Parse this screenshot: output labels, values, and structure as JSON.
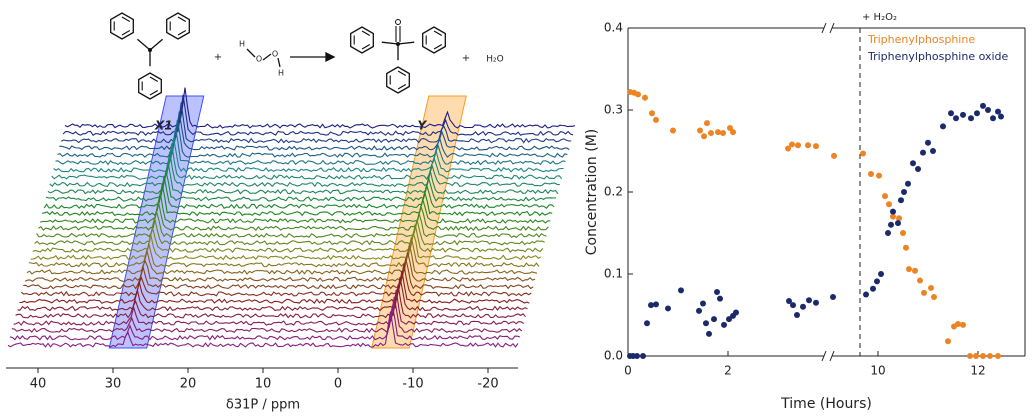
{
  "chart_data": [
    {
      "type": "waterfall",
      "xlabel": "δ31P / ppm",
      "xlim": [
        44,
        -24
      ],
      "xticks": [
        40,
        30,
        20,
        10,
        0,
        -10,
        -20
      ],
      "peaks": [
        {
          "label": "X1",
          "ppm": 28,
          "color": "#3c50ff"
        },
        {
          "label": "Y",
          "ppm": -7,
          "color": "#ff9a1e"
        }
      ]
    },
    {
      "type": "scatter",
      "xlabel": "Time (Hours)",
      "ylabel": "Concentration (M)",
      "xlim": [
        0,
        12.95
      ],
      "xbreak": [
        4,
        9
      ],
      "ylim": [
        0,
        0.4
      ],
      "xticks": [
        0,
        2,
        10,
        12
      ],
      "yticks": [
        {
          "value": 0,
          "label": "0.0"
        },
        0.1,
        0.2,
        0.3,
        0.4
      ],
      "legend": "top-right",
      "annotation": {
        "text": "+ H₂O₂",
        "x": 9.64
      },
      "series": [
        {
          "name": "Triphenylphosphine",
          "color": "#ec8424",
          "x": [
            0.04,
            0.12,
            0.2,
            0.34,
            0.48,
            0.56,
            0.9,
            1.44,
            1.52,
            1.58,
            1.66,
            1.8,
            1.9,
            2.04,
            2.1,
            3.2,
            3.28,
            3.4,
            3.6,
            3.76,
            9.12,
            9.7,
            9.86,
            10.02,
            10.14,
            10.22,
            10.3,
            10.42,
            10.5,
            10.56,
            10.62,
            10.74,
            10.84,
            10.92,
            11.06,
            11.12,
            11.4,
            11.52,
            11.6,
            11.7,
            11.84,
            11.96,
            12.1,
            12.24,
            12.4
          ],
          "values": [
            0.322,
            0.321,
            0.319,
            0.315,
            0.296,
            0.288,
            0.275,
            0.275,
            0.268,
            0.284,
            0.272,
            0.273,
            0.272,
            0.278,
            0.273,
            0.253,
            0.258,
            0.257,
            0.257,
            0.256,
            0.244,
            0.247,
            0.222,
            0.22,
            0.195,
            0.185,
            0.17,
            0.168,
            0.15,
            0.132,
            0.106,
            0.104,
            0.092,
            0.077,
            0.083,
            0.072,
            0.018,
            0.036,
            0.039,
            0.038,
            0,
            0,
            0,
            0,
            0
          ]
        },
        {
          "name": "Triphenylphosphine oxide",
          "color": "#1b2a6b",
          "x": [
            0.04,
            0.1,
            0.18,
            0.3,
            0.38,
            0.46,
            0.56,
            0.8,
            1.06,
            1.42,
            1.5,
            1.56,
            1.62,
            1.72,
            1.78,
            1.84,
            1.92,
            2.02,
            2.1,
            2.16,
            3.22,
            3.3,
            3.38,
            3.5,
            3.62,
            3.76,
            9.1,
            9.76,
            9.9,
            9.98,
            10.06,
            10.2,
            10.26,
            10.3,
            10.4,
            10.46,
            10.52,
            10.6,
            10.7,
            10.8,
            10.9,
            11.0,
            11.1,
            11.3,
            11.46,
            11.56,
            11.7,
            11.86,
            11.98,
            12.1,
            12.2,
            12.3,
            12.4,
            12.46
          ],
          "values": [
            0,
            0,
            0,
            0,
            0.04,
            0.062,
            0.063,
            0.058,
            0.08,
            0.055,
            0.064,
            0.04,
            0.027,
            0.045,
            0.078,
            0.07,
            0.038,
            0.045,
            0.049,
            0.053,
            0.067,
            0.062,
            0.05,
            0.06,
            0.068,
            0.065,
            0.072,
            0.075,
            0.082,
            0.091,
            0.1,
            0.15,
            0.16,
            0.176,
            0.162,
            0.19,
            0.2,
            0.21,
            0.235,
            0.228,
            0.248,
            0.26,
            0.25,
            0.28,
            0.296,
            0.29,
            0.294,
            0.29,
            0.296,
            0.305,
            0.3,
            0.29,
            0.298,
            0.292
          ]
        }
      ]
    }
  ],
  "scheme": {
    "plus_1": "+",
    "h_left": "H",
    "o_left": "O",
    "o_right": "O",
    "h_right": "H",
    "plus_2": "+",
    "water": "H₂O"
  }
}
